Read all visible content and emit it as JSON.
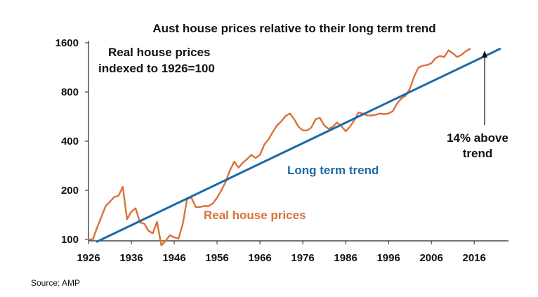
{
  "chart_data": {
    "type": "line",
    "title": "Aust house prices relative to their long term trend",
    "y_scale": "log",
    "ylim": [
      100,
      1600
    ],
    "xlim": [
      1926,
      2024
    ],
    "y_ticks": [
      100,
      200,
      400,
      800,
      1600
    ],
    "y_tick_labels": [
      "100",
      "200",
      "400",
      "800",
      "1600"
    ],
    "x_ticks": [
      1926,
      1936,
      1946,
      1956,
      1966,
      1976,
      1986,
      1996,
      2006,
      2016
    ],
    "x_tick_labels": [
      "1926",
      "1936",
      "1946",
      "1956",
      "1966",
      "1976",
      "1986",
      "1996",
      "2006",
      "2016"
    ],
    "grid": false,
    "series": [
      {
        "name": "Real house prices",
        "color": "#d9703a",
        "x": [
          1926,
          1927,
          1928,
          1929,
          1930,
          1931,
          1932,
          1933,
          1934,
          1935,
          1936,
          1937,
          1938,
          1939,
          1940,
          1941,
          1942,
          1943,
          1944,
          1945,
          1946,
          1947,
          1948,
          1949,
          1950,
          1951,
          1952,
          1953,
          1954,
          1955,
          1956,
          1957,
          1958,
          1959,
          1960,
          1961,
          1962,
          1963,
          1964,
          1965,
          1966,
          1967,
          1968,
          1969,
          1970,
          1971,
          1972,
          1973,
          1974,
          1975,
          1976,
          1977,
          1978,
          1979,
          1980,
          1981,
          1982,
          1983,
          1984,
          1985,
          1986,
          1987,
          1988,
          1989,
          1990,
          1991,
          1992,
          1993,
          1994,
          1995,
          1996,
          1997,
          1998,
          1999,
          2000,
          2001,
          2002,
          2003,
          2004,
          2005,
          2006,
          2007,
          2008,
          2009,
          2010,
          2011,
          2012,
          2013,
          2014,
          2015
        ],
        "values": [
          100,
          100,
          118,
          137,
          160,
          170,
          182,
          185,
          210,
          133,
          148,
          155,
          127,
          125,
          113,
          109,
          128,
          92,
          98,
          106,
          103,
          101,
          124,
          176,
          181,
          158,
          158,
          160,
          160,
          166,
          180,
          200,
          225,
          265,
          300,
          275,
          295,
          310,
          330,
          315,
          330,
          380,
          410,
          455,
          500,
          530,
          570,
          590,
          545,
          490,
          465,
          465,
          485,
          545,
          555,
          500,
          475,
          490,
          520,
          495,
          460,
          490,
          535,
          600,
          590,
          575,
          575,
          580,
          590,
          585,
          590,
          610,
          680,
          730,
          760,
          840,
          1000,
          1130,
          1160,
          1170,
          1200,
          1290,
          1330,
          1310,
          1440,
          1380,
          1310,
          1350,
          1420,
          1470
        ]
      },
      {
        "name": "Long term trend",
        "color": "#1a6aa8",
        "x": [
          1928,
          2022
        ],
        "values": [
          97,
          1470
        ]
      }
    ],
    "annotations": {
      "index_note_line1": "Real house prices",
      "index_note_line2": "indexed to 1926=100",
      "trend_label": "Long term trend",
      "prices_label": "Real house prices",
      "above_line1": "14% above",
      "above_line2": "trend"
    }
  },
  "source": "Source: AMP"
}
